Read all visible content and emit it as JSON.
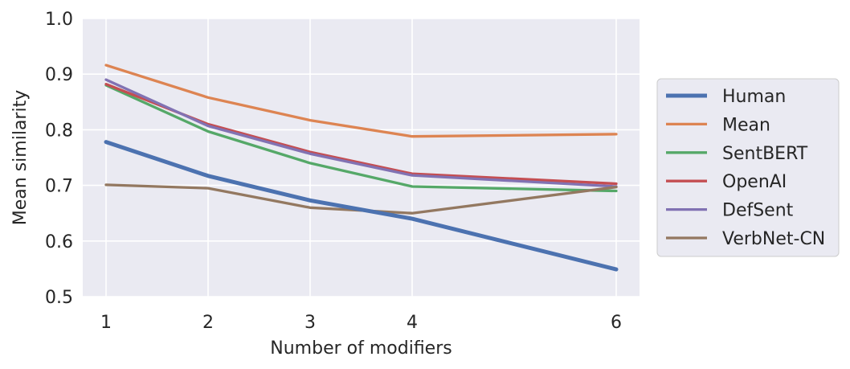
{
  "chart_data": {
    "type": "line",
    "xlabel": "Number of modifiers",
    "ylabel": "Mean similarity",
    "x": [
      1,
      2,
      3,
      4,
      6
    ],
    "xticks": [
      "1",
      "2",
      "3",
      "4",
      "6"
    ],
    "ylim": [
      0.5,
      1.0
    ],
    "yticks": [
      "0.5",
      "0.6",
      "0.7",
      "0.8",
      "0.9",
      "1.0"
    ],
    "grid": true,
    "legend_position": "right",
    "series": [
      {
        "name": "Human",
        "color": "#4c72b0",
        "values": [
          0.778,
          0.717,
          0.673,
          0.64,
          0.549
        ]
      },
      {
        "name": "Mean",
        "color": "#dd8452",
        "values": [
          0.916,
          0.858,
          0.817,
          0.788,
          0.792
        ]
      },
      {
        "name": "SentBERT",
        "color": "#55a868",
        "values": [
          0.88,
          0.797,
          0.74,
          0.698,
          0.69
        ]
      },
      {
        "name": "OpenAI",
        "color": "#c44e52",
        "values": [
          0.882,
          0.81,
          0.76,
          0.721,
          0.703
        ]
      },
      {
        "name": "DefSent",
        "color": "#8172b3",
        "values": [
          0.89,
          0.807,
          0.757,
          0.718,
          0.698
        ]
      },
      {
        "name": "VerbNet-CN",
        "color": "#937860",
        "values": [
          0.701,
          0.695,
          0.66,
          0.65,
          0.697
        ]
      }
    ]
  }
}
